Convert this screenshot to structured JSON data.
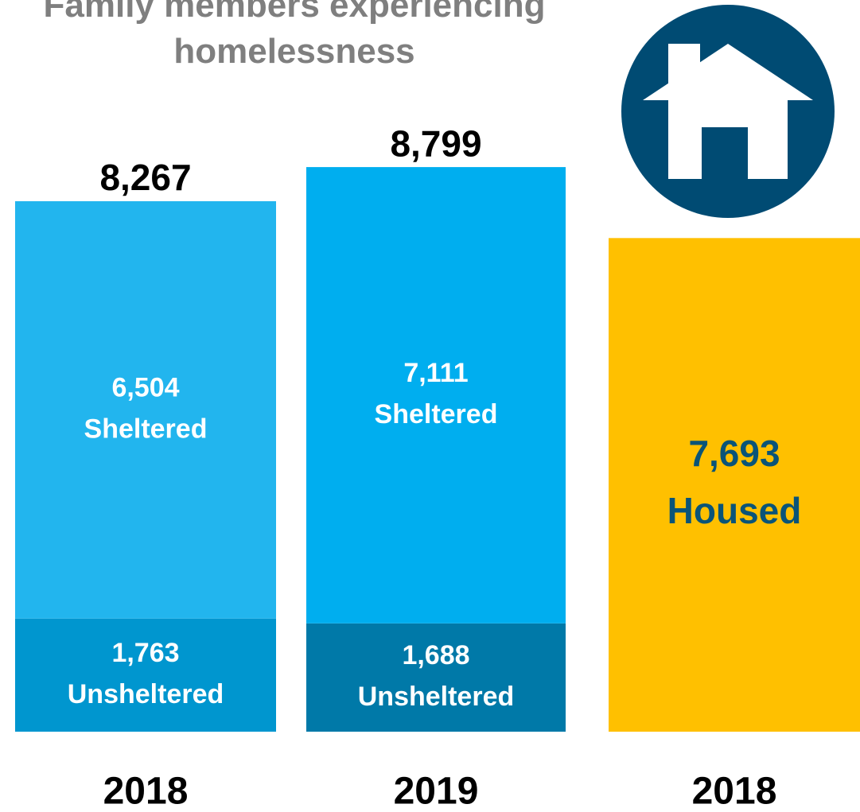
{
  "chart_data": {
    "type": "stacked_bar",
    "title": "Family members experiencing homelessness",
    "categories": [
      "2018",
      "2019",
      "2018"
    ],
    "series": [
      {
        "name": "Unsheltered",
        "colors": [
          "#0096cf",
          "#0079a8",
          null
        ],
        "values": [
          1763,
          1688,
          null
        ],
        "value_labels": [
          "1,763",
          "1,688",
          null
        ],
        "label_color": "#ffffff"
      },
      {
        "name": "Sheltered",
        "colors": [
          "#22b5ee",
          "#00aeef",
          null
        ],
        "values": [
          6504,
          7111,
          null
        ],
        "value_labels": [
          "6,504",
          "7,111",
          null
        ],
        "label_color": "#ffffff"
      },
      {
        "name": "Housed",
        "colors": [
          null,
          null,
          "#ffc000"
        ],
        "values": [
          null,
          null,
          7693
        ],
        "value_labels": [
          null,
          null,
          "7,693"
        ],
        "label_color": "#0a5478"
      }
    ],
    "total_labels": [
      "8,267",
      "8,799",
      null
    ]
  }
}
